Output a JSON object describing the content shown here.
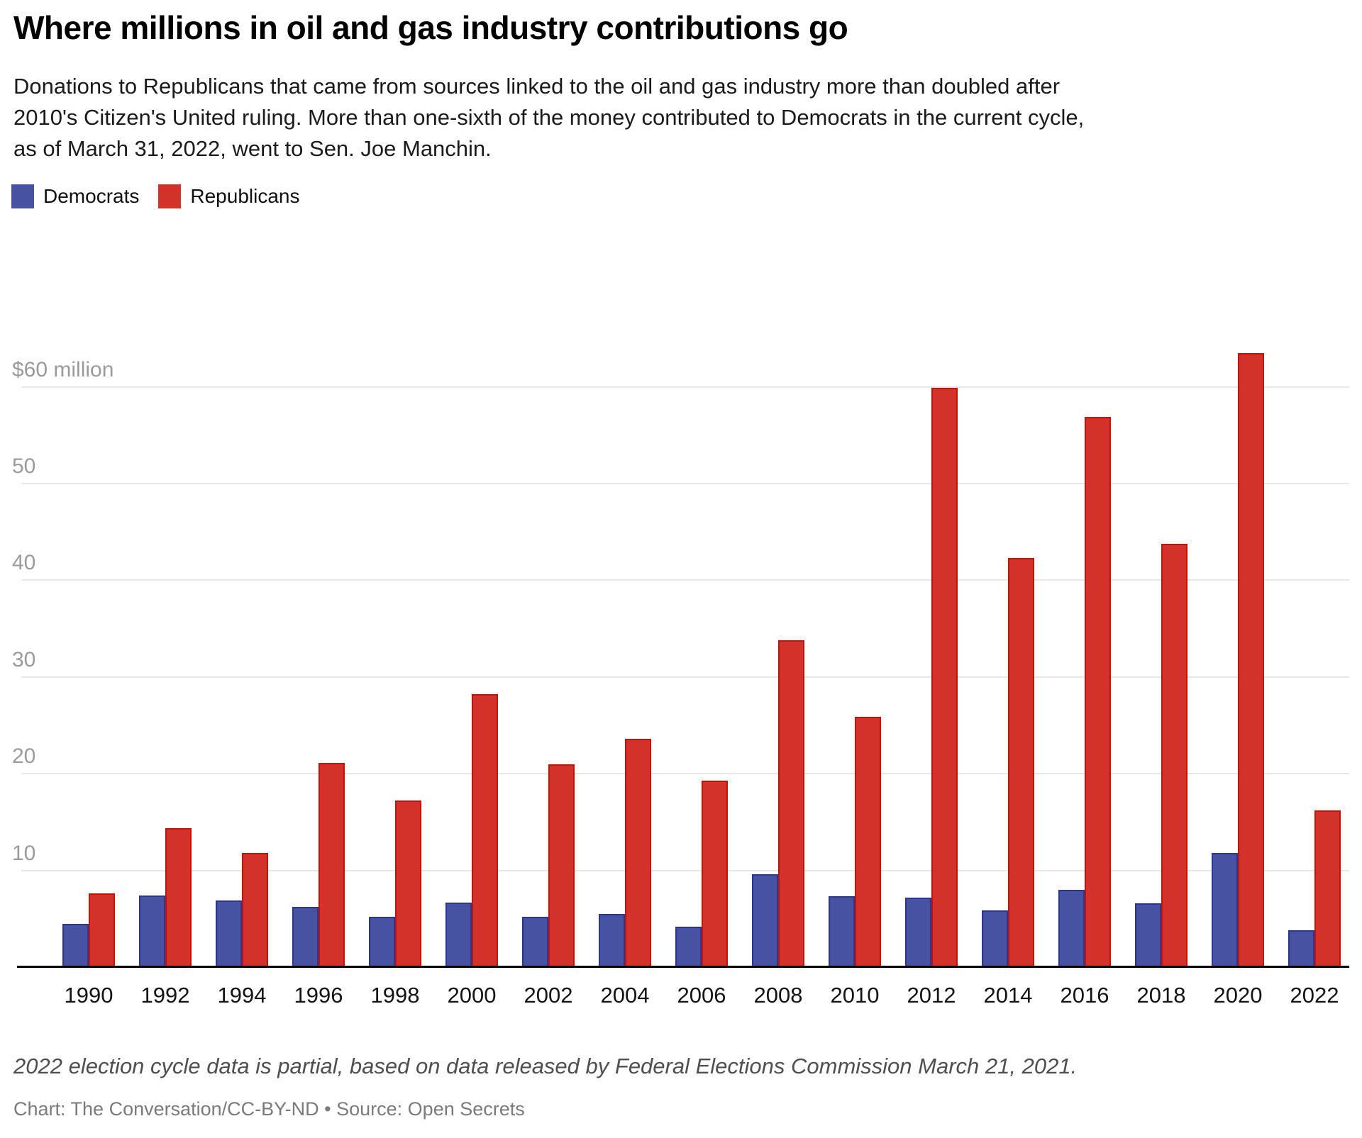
{
  "chart_data": {
    "type": "bar",
    "title": "Where millions in oil and gas industry contributions go",
    "subtitle": "Donations to Republicans that came from sources linked to the oil and gas industry more than doubled after 2010's Citizen's United ruling. More than one-sixth of the money contributed to Democrats in the current cycle, as of March 31, 2022, went to Sen. Joe Manchin.",
    "categories": [
      "1990",
      "1992",
      "1994",
      "1996",
      "1998",
      "2000",
      "2002",
      "2004",
      "2006",
      "2008",
      "2010",
      "2012",
      "2014",
      "2016",
      "2018",
      "2020",
      "2022"
    ],
    "series": [
      {
        "name": "Democrats",
        "color": "#4852A2",
        "stroke": "#2B3690",
        "values": [
          4.5,
          7.4,
          6.9,
          6.2,
          5.2,
          6.7,
          5.2,
          5.5,
          4.2,
          9.6,
          7.3,
          7.2,
          5.9,
          8.0,
          6.6,
          11.8,
          3.8
        ]
      },
      {
        "name": "Republicans",
        "color": "#D3322B",
        "stroke": "#C81005",
        "values": [
          7.6,
          14.4,
          11.8,
          21.1,
          17.2,
          28.2,
          21.0,
          23.6,
          19.3,
          33.8,
          25.9,
          59.9,
          42.3,
          56.9,
          43.8,
          63.5,
          16.2
        ]
      }
    ],
    "unit": "million US dollars",
    "yticks": [
      {
        "value": 10,
        "label": "10"
      },
      {
        "value": 20,
        "label": "20"
      },
      {
        "value": 30,
        "label": "30"
      },
      {
        "value": 40,
        "label": "40"
      },
      {
        "value": 50,
        "label": "50"
      },
      {
        "value": 60,
        "label": "$60 million"
      }
    ],
    "ylim": [
      0,
      66
    ],
    "xlabel": "",
    "ylabel": "",
    "grid": "horizontal",
    "legend_position": "top-left",
    "gridline_color": "#e8e8e8",
    "axis_line_color": "#000000",
    "ytick_color": "#9b9b9b",
    "xtick_color": "#141414"
  },
  "footer": {
    "note": "2022 election cycle data is partial, based on data released by Federal Elections Commission March 21, 2021.",
    "credit": "Chart: The Conversation/CC-BY-ND • Source: Open Secrets"
  }
}
